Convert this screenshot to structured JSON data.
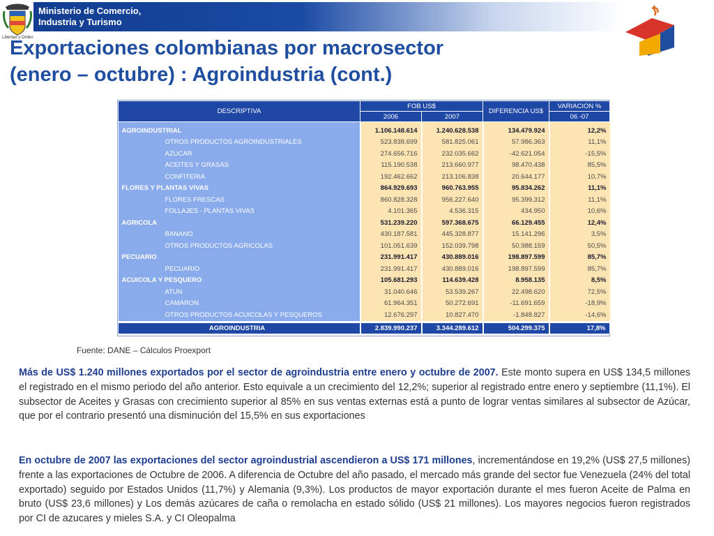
{
  "header": {
    "ministry_line1": "Ministerio de Comercio,",
    "ministry_line2": "Industria y Turismo",
    "crest_caption": "Libertad y Orden"
  },
  "title": {
    "line1": "Exportaciones colombianas por macrosector",
    "line2": "(enero – octubre) : Agroindustria (cont.)"
  },
  "table": {
    "headers": {
      "descriptiva": "DESCRIPTIVA",
      "fob": "FOB US$",
      "y2006": "2006",
      "y2007": "2007",
      "diferencia": "DIFERENCIA US$",
      "variacion": "VARIACION %",
      "variacion_period": "06 -07"
    },
    "rows": [
      {
        "label": "AGROINDUSTRIAL",
        "v2006": "1.106.148.614",
        "v2007": "1.240.628.538",
        "dif": "134.479.924",
        "var": "12,2%",
        "type": "sector"
      },
      {
        "label": "OTROS PRODUCTOS AGROINDUSTRIALES",
        "v2006": "523.838.699",
        "v2007": "581.825.061",
        "dif": "57.986.363",
        "var": "11,1%",
        "type": "sub"
      },
      {
        "label": "AZUCAR",
        "v2006": "274.656.716",
        "v2007": "232.035.662",
        "dif": "-42.621.054",
        "var": "-15,5%",
        "type": "sub"
      },
      {
        "label": "ACEITES Y GRASAS",
        "v2006": "115.190.538",
        "v2007": "213.660.977",
        "dif": "98.470.438",
        "var": "85,5%",
        "type": "sub"
      },
      {
        "label": "CONFITERIA",
        "v2006": "192.462.662",
        "v2007": "213.106.838",
        "dif": "20.644.177",
        "var": "10,7%",
        "type": "sub"
      },
      {
        "label": "FLORES Y PLANTAS VIVAS",
        "v2006": "864.929.693",
        "v2007": "960.763.955",
        "dif": "95.834.262",
        "var": "11,1%",
        "type": "sector"
      },
      {
        "label": "FLORES FRESCAS",
        "v2006": "860.828.328",
        "v2007": "956.227.640",
        "dif": "95.399.312",
        "var": "11,1%",
        "type": "sub"
      },
      {
        "label": "FOLLAJES - PLANTAS VIVAS",
        "v2006": "4.101.365",
        "v2007": "4.536.315",
        "dif": "434.950",
        "var": "10,6%",
        "type": "sub"
      },
      {
        "label": "AGRICOLA",
        "v2006": "531.239.220",
        "v2007": "597.368.675",
        "dif": "66.129.455",
        "var": "12,4%",
        "type": "sector"
      },
      {
        "label": "BANANO",
        "v2006": "430.187.581",
        "v2007": "445.328.877",
        "dif": "15.141.296",
        "var": "3,5%",
        "type": "sub"
      },
      {
        "label": "OTROS PRODUCTOS AGRICOLAS",
        "v2006": "101.051.639",
        "v2007": "152.039.798",
        "dif": "50.988.159",
        "var": "50,5%",
        "type": "sub"
      },
      {
        "label": "PECUARIO",
        "v2006": "231.991.417",
        "v2007": "430.889.016",
        "dif": "198.897.599",
        "var": "85,7%",
        "type": "sector"
      },
      {
        "label": "PECUARIO",
        "v2006": "231.991.417",
        "v2007": "430.889.016",
        "dif": "198.897.599",
        "var": "85,7%",
        "type": "sub"
      },
      {
        "label": "ACUICOLA Y PESQUERO",
        "v2006": "105.681.293",
        "v2007": "114.639.428",
        "dif": "8.958.135",
        "var": "8,5%",
        "type": "sector"
      },
      {
        "label": "ATUN",
        "v2006": "31.040.646",
        "v2007": "53.539.267",
        "dif": "22.498.620",
        "var": "72,5%",
        "type": "sub"
      },
      {
        "label": "CAMARON",
        "v2006": "61.964.351",
        "v2007": "50.272.691",
        "dif": "-11.691.659",
        "var": "-18,9%",
        "type": "sub"
      },
      {
        "label": "OTROS PRODUCTOS ACUICOLAS Y PESQUEROS",
        "v2006": "12.676.297",
        "v2007": "10.827.470",
        "dif": "-1.848.827",
        "var": "-14,6%",
        "type": "sub"
      }
    ],
    "total": {
      "label": "AGROINDUSTRIA",
      "v2006": "2.839.990.237",
      "v2007": "3.344.289.612",
      "dif": "504.299.375",
      "var": "17,8%"
    }
  },
  "source": "Fuente: DANE – Cálculos Proexport",
  "paragraphs": {
    "p1_lead": "Más de US$ 1.240 millones exportados por el sector de agroindustria entre enero y octubre de 2007.",
    "p1_body": "  Este monto supera en US$ 134,5 millones el registrado en el mismo periodo del año anterior.  Esto equivale a un crecimiento del 12,2%; superior al registrado entre enero y septiembre (11,1%).  El subsector de Aceites y Grasas  con crecimiento superior al 85% en sus ventas externas está a punto de lograr ventas similares al subsector de Azúcar, que por el contrario presentó una disminución del 15,5% en sus exportaciones",
    "p2_lead": "En octubre de 2007 las exportaciones del sector agroindustrial ascendieron a US$ 171 millones",
    "p2_body": ", incrementándose en 19,2% (US$ 27,5 millones) frente a las exportaciones de Octubre de 2006. A diferencia de Octubre del año pasado, el mercado más grande del sector fue Venezuela (24% del total exportado) seguido  por Estados Unidos (11,7%) y Alemania (9,3%).  Los productos de mayor exportación durante el mes fueron Aceite de Palma en bruto (US$ 23,6 millones) y Los demás azúcares de caña o remolacha en estado sólido (US$ 21 millones). Los mayores negocios  fueron registrados por CI de azucares y mieles S.A. y CI Oleopalma"
  }
}
